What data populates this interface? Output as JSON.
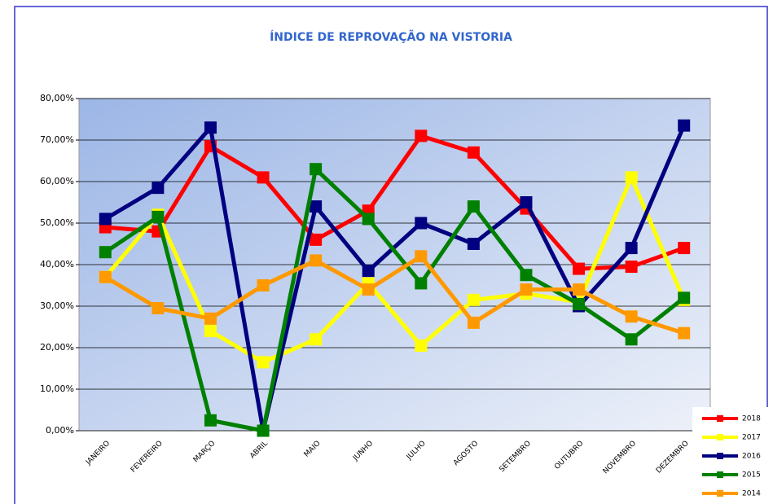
{
  "chart_data": {
    "type": "line",
    "title": "ÍNDICE DE REPROVAÇÃO NA VISTORIA",
    "categories": [
      "JANEIRO",
      "FEVEREIRO",
      "MARÇO",
      "ABRIL",
      "MAIO",
      "JUNHO",
      "JULHO",
      "AGOSTO",
      "SETEMBRO",
      "OUTUBRO",
      "NOVEMBRO",
      "DEZEMBRO"
    ],
    "series": [
      {
        "name": "2018",
        "color": "#ff0000",
        "values": [
          49,
          48,
          68.5,
          61,
          46,
          53,
          71,
          67,
          53.5,
          39,
          39.5,
          44
        ]
      },
      {
        "name": "2017",
        "color": "#ffff00",
        "values": [
          37,
          52,
          24,
          16.5,
          22,
          35.5,
          20.5,
          31.5,
          33,
          31,
          61,
          31.5
        ]
      },
      {
        "name": "2016",
        "color": "#000080",
        "values": [
          51,
          58.5,
          73,
          0,
          54,
          38.5,
          50,
          45,
          55,
          30,
          44,
          73.5
        ]
      },
      {
        "name": "2015",
        "color": "#008000",
        "values": [
          43,
          51.5,
          2.5,
          0,
          63,
          51,
          35.5,
          54,
          37.5,
          30.5,
          22,
          32
        ]
      },
      {
        "name": "2014",
        "color": "#ff9900",
        "values": [
          37,
          29.5,
          27,
          35,
          41,
          34,
          42,
          26,
          34,
          34,
          27.5,
          23.5
        ]
      }
    ],
    "ylim": [
      0,
      80
    ],
    "yticks": [
      {
        "value": 0,
        "label": "0,00%"
      },
      {
        "value": 10,
        "label": "10,00%"
      },
      {
        "value": 20,
        "label": "20,00%"
      },
      {
        "value": 30,
        "label": "30,00%"
      },
      {
        "value": 40,
        "label": "40,00%"
      },
      {
        "value": 50,
        "label": "50,00%"
      },
      {
        "value": 60,
        "label": "60,00%"
      },
      {
        "value": 70,
        "label": "70,00%"
      },
      {
        "value": 80,
        "label": "80,00%"
      }
    ],
    "grid": true,
    "legend": "bottom-right"
  }
}
